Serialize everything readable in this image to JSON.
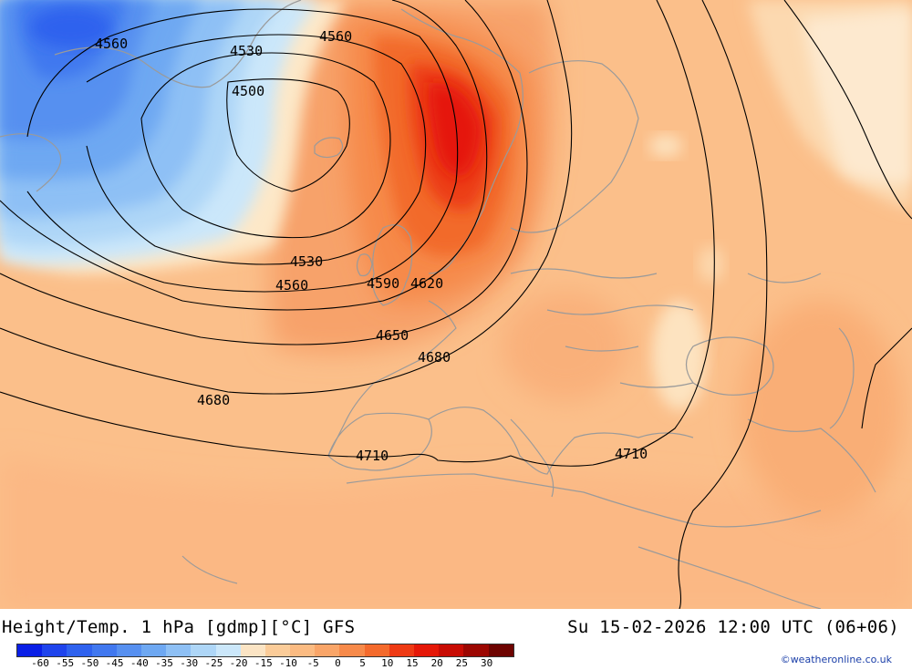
{
  "footer": {
    "title": "Height/Temp. 1 hPa [gdmp][°C] GFS",
    "valid_time": "Su 15-02-2026 12:00 UTC (06+06)",
    "credit": "©weatheronline.co.uk"
  },
  "legend": {
    "ticks": [
      "-60",
      "-55",
      "-50",
      "-45",
      "-40",
      "-35",
      "-30",
      "-25",
      "-20",
      "-15",
      "-10",
      "-5",
      "0",
      "5",
      "10",
      "15",
      "20",
      "25",
      "30"
    ],
    "colors": [
      "#0a1fe6",
      "#1f44ec",
      "#2f62ee",
      "#4178ef",
      "#5790f0",
      "#6ea8f2",
      "#8ec0f5",
      "#aed6f7",
      "#cbe7fa",
      "#fbe4c4",
      "#fbcc99",
      "#fbbb82",
      "#f9a568",
      "#f78a4a",
      "#f46a2c",
      "#ee3a14",
      "#e51808",
      "#c80c04",
      "#9c0702",
      "#6e0401"
    ]
  },
  "contours": {
    "labels": [
      "4560",
      "4530",
      "4500",
      "4560",
      "4530",
      "4560",
      "4590",
      "4620",
      "4650",
      "4680",
      "4680",
      "4710",
      "4710"
    ]
  }
}
